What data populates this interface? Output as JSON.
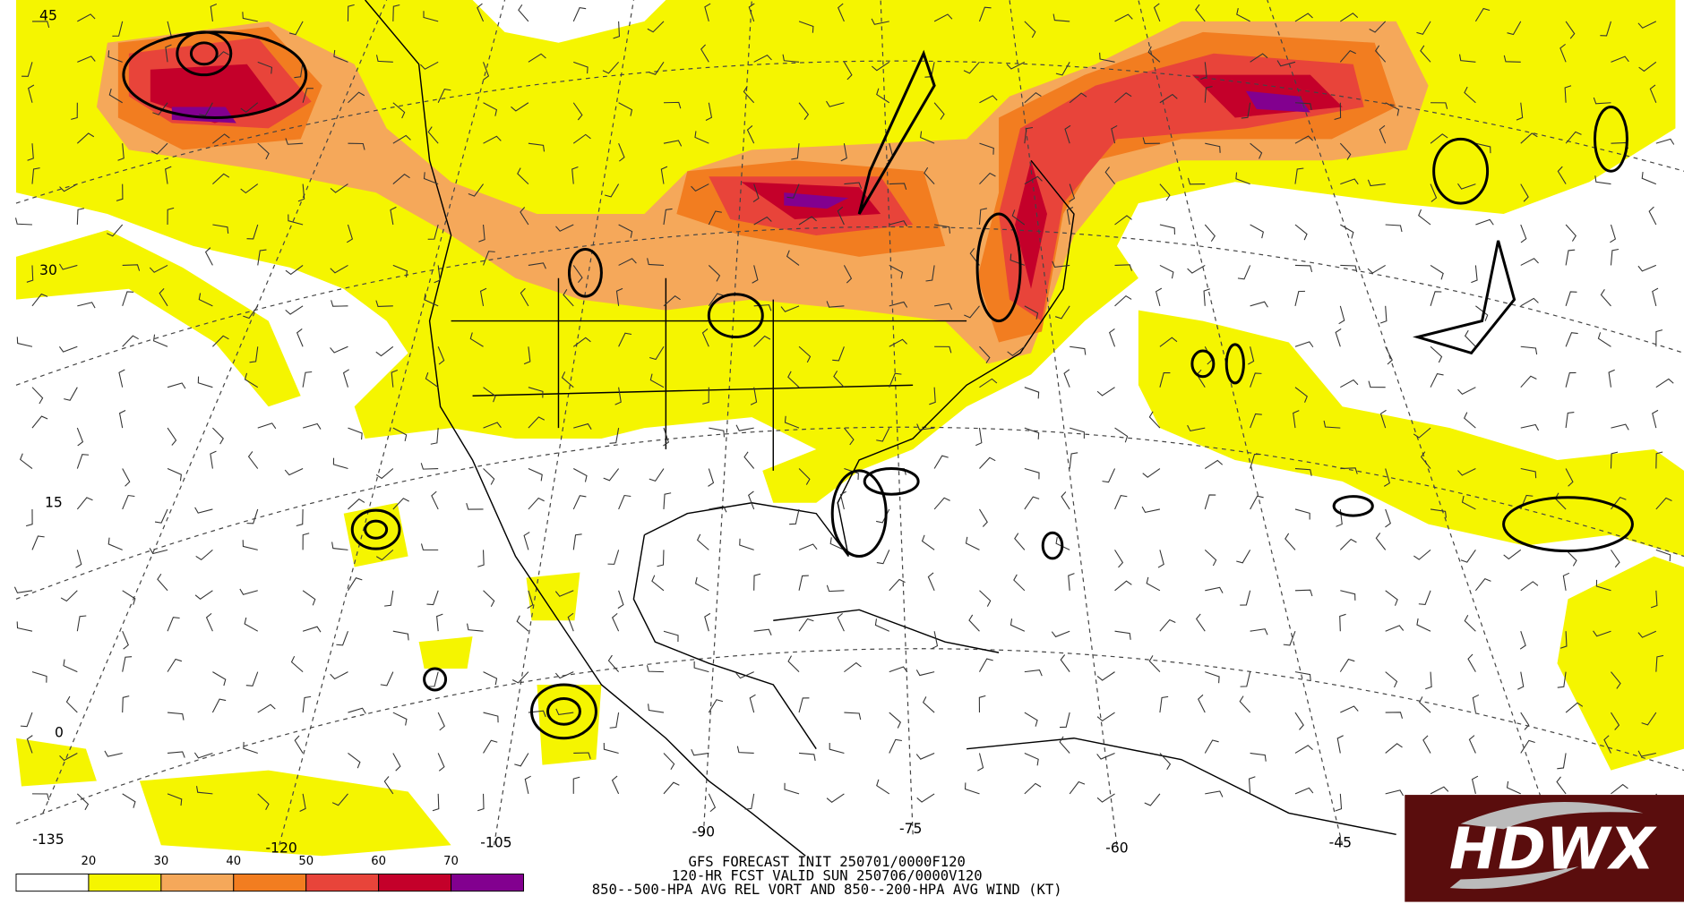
{
  "map": {
    "title_lines": [
      "GFS FORECAST INIT 250701/0000F120",
      "120-HR FCST VALID SUN 250706/0000V120",
      "850--500-HPA AVG REL VORT AND 850--200-HPA AVG WIND (KT)"
    ],
    "colorbar": {
      "labels": [
        20,
        30,
        40,
        50,
        60,
        70
      ],
      "colors": [
        "#ffffff",
        "#f5f500",
        "#f5a85a",
        "#f27d20",
        "#e8443a",
        "#c4002a",
        "#82008f"
      ]
    },
    "lat_labels": [
      "45",
      "30",
      "15",
      "0"
    ],
    "lon_labels": [
      "-135",
      "-120",
      "-105",
      "-90",
      "-75",
      "-60",
      "-45"
    ],
    "logo": "HDWX"
  }
}
